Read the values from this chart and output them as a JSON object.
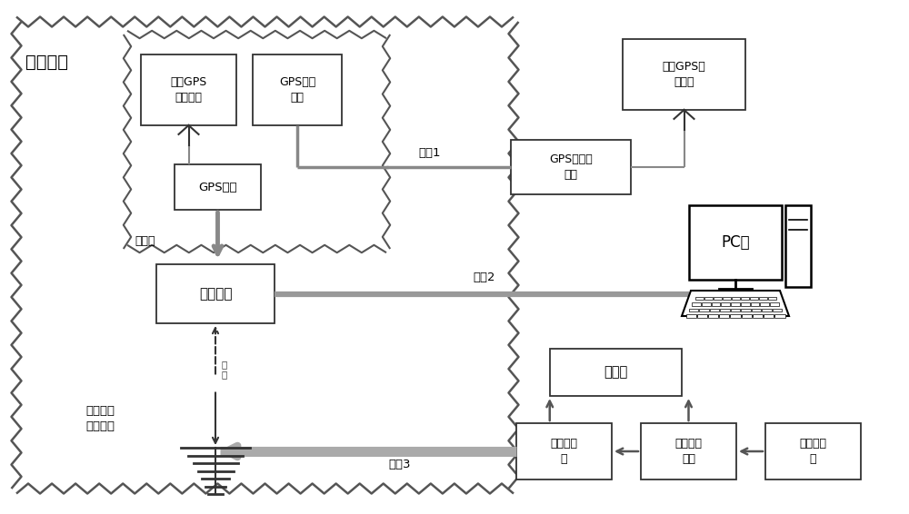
{
  "bg_color": "#ffffff",
  "text_color": "#000000",
  "box_edge": "#333333",
  "zigzag_color": "#555555",
  "line_color": "#999999",
  "arrow_color": "#666666",
  "label_电波暗室": "电波暗室",
  "label_屏蔽腔": "屏蔽腔",
  "label_第二GPS接收天线": "第二GPS\n接收天线",
  "label_GPS发射天线": "GPS发射\n天线",
  "label_GPS模块": "GPS模块",
  "label_飞控模块": "飞控模块",
  "label_堆叠对数周期天线": "堆叠对数\n周期天线",
  "label_第一GPS接收天线": "第一GPS接\n收天线",
  "label_GPS信号增强器": "GPS信号增\n强器",
  "label_PC端": "PC端",
  "label_功率计": "功率计",
  "label_定向耦合器": "定向耦合\n器",
  "label_大功率放大器": "大功率放\n大器",
  "label_信号发生器": "信号发生\n器",
  "label_通道1": "通道1",
  "label_通道2": "通道2",
  "label_通道3": "通道3"
}
